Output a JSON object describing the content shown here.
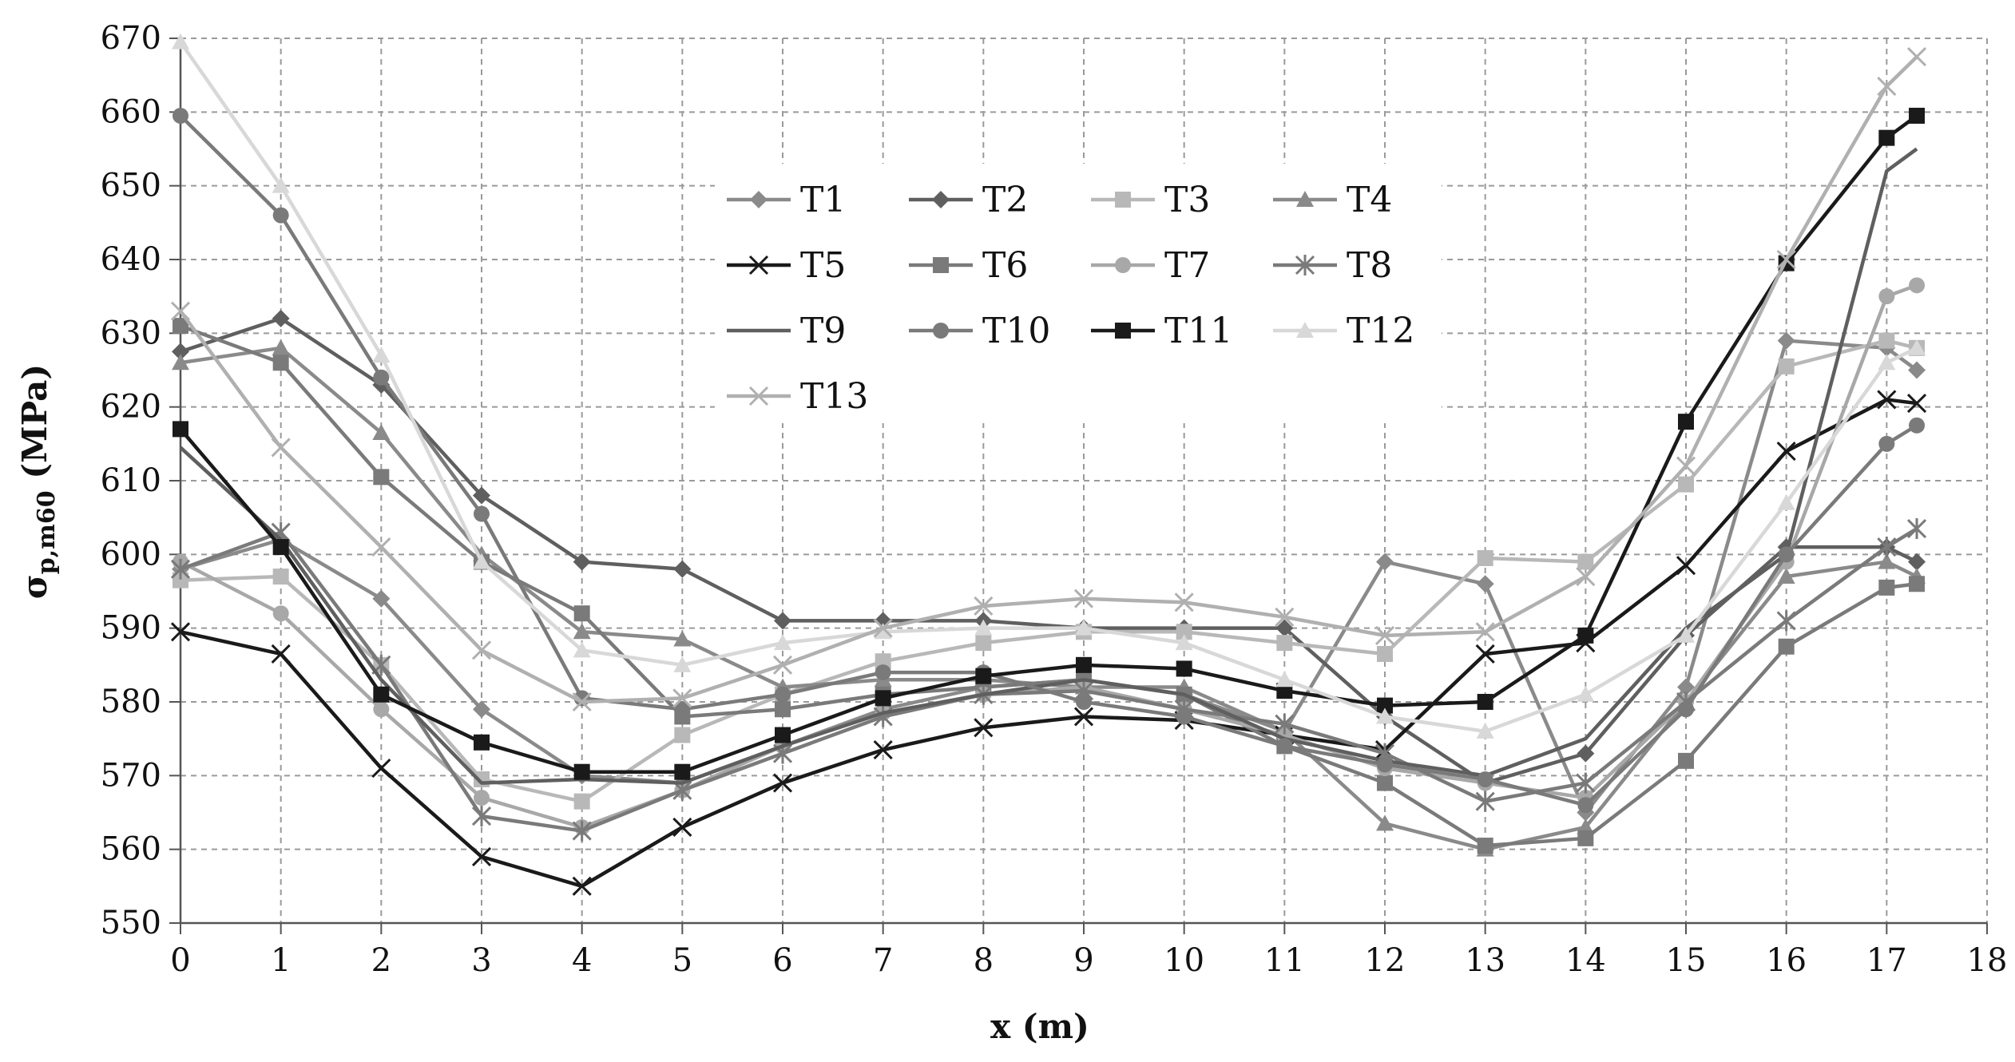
{
  "chart_data": {
    "type": "line",
    "title": "",
    "xlabel": "x (m)",
    "ylabel_main": "σ",
    "ylabel_sub": "p,m60",
    "ylabel_unit": " (MPa)",
    "xlim": [
      0,
      18
    ],
    "ylim": [
      550,
      670
    ],
    "x_ticks": [
      0,
      1,
      2,
      3,
      4,
      5,
      6,
      7,
      8,
      9,
      10,
      11,
      12,
      13,
      14,
      15,
      16,
      17,
      18
    ],
    "y_ticks": [
      550,
      560,
      570,
      580,
      590,
      600,
      610,
      620,
      630,
      640,
      650,
      660,
      670
    ],
    "grid": true,
    "legend_position": "top-center",
    "x": [
      0,
      1,
      2,
      3,
      4,
      5,
      6,
      7,
      8,
      9,
      10,
      11,
      12,
      13,
      14,
      15,
      16,
      17,
      17.3
    ],
    "series": [
      {
        "name": "T1",
        "color": "#8a8a8a",
        "marker": "diamond",
        "values": [
          598,
          602,
          594,
          579,
          570,
          569,
          574,
          579,
          582,
          583,
          581,
          576,
          599,
          596,
          565,
          582,
          629,
          628,
          625
        ]
      },
      {
        "name": "T2",
        "color": "#5f5f5f",
        "marker": "diamond",
        "values": [
          627.5,
          632,
          623,
          608,
          599,
          598,
          591,
          591,
          591,
          590,
          590,
          590,
          578,
          569,
          573,
          589,
          601,
          601,
          599
        ]
      },
      {
        "name": "T3",
        "color": "#b8b8b8",
        "marker": "square",
        "values": [
          596.5,
          597,
          585,
          569.5,
          566.5,
          575.5,
          581,
          585.5,
          588,
          589.5,
          589.5,
          588,
          586.5,
          599.5,
          599,
          609.5,
          625.5,
          629,
          628
        ]
      },
      {
        "name": "T4",
        "color": "#8a8a8a",
        "marker": "triangle",
        "values": [
          626,
          628,
          616.5,
          600,
          589.5,
          588.5,
          582,
          583,
          583,
          582,
          582,
          576,
          563.5,
          560,
          563,
          580,
          597,
          599,
          597
        ]
      },
      {
        "name": "T5",
        "color": "#1a1a1a",
        "marker": "x",
        "values": [
          589.5,
          586.5,
          571,
          559,
          555,
          563,
          569,
          573.5,
          576.5,
          578,
          577.5,
          575.5,
          573.5,
          586.5,
          588,
          598.5,
          614,
          621,
          620.5
        ]
      },
      {
        "name": "T6",
        "color": "#7a7a7a",
        "marker": "square",
        "values": [
          631,
          626,
          610.5,
          599,
          592,
          578,
          579,
          581,
          582,
          583,
          581,
          574,
          569,
          560.5,
          561.5,
          572,
          587.5,
          595.5,
          596
        ]
      },
      {
        "name": "T7",
        "color": "#a8a8a8",
        "marker": "circle",
        "values": [
          599,
          592,
          579,
          567,
          563,
          568,
          574,
          578.5,
          581,
          582,
          579,
          575.5,
          571,
          569,
          567,
          580,
          599,
          635,
          636.5
        ]
      },
      {
        "name": "T8",
        "color": "#7a7a7a",
        "marker": "star",
        "values": [
          598,
          603,
          585,
          564.5,
          562.5,
          568,
          573,
          578,
          581,
          581.5,
          579,
          577,
          573,
          566.5,
          569,
          580,
          591,
          601,
          603.5
        ]
      },
      {
        "name": "T9",
        "color": "#5f5f5f",
        "marker": "none",
        "values": [
          614.5,
          602,
          583,
          569,
          569.5,
          569,
          574,
          578.5,
          581,
          583,
          581,
          575,
          572,
          570,
          575,
          590,
          600,
          652,
          655
        ]
      },
      {
        "name": "T10",
        "color": "#7a7a7a",
        "marker": "circle",
        "values": [
          659.5,
          646,
          624,
          605.5,
          580.5,
          579,
          581,
          584,
          584,
          580,
          578,
          574,
          571.5,
          569.5,
          566,
          579,
          600,
          615,
          617.5
        ]
      },
      {
        "name": "T11",
        "color": "#1a1a1a",
        "marker": "square",
        "values": [
          617,
          601,
          581,
          574.5,
          570.5,
          570.5,
          575.5,
          580.5,
          583.5,
          585,
          584.5,
          581.5,
          579.5,
          580,
          589,
          618,
          639.5,
          656.5,
          659.5
        ]
      },
      {
        "name": "T12",
        "color": "#d8d8d8",
        "marker": "triangle",
        "values": [
          669.5,
          650,
          627,
          599,
          587,
          585,
          588,
          589.5,
          590,
          590,
          588,
          583,
          578,
          576,
          581,
          589,
          607,
          626,
          628
        ]
      },
      {
        "name": "T13",
        "color": "#b0b0b0",
        "marker": "x",
        "values": [
          633,
          614.5,
          601,
          587,
          580,
          580.5,
          585,
          590,
          593,
          594,
          593.5,
          591.5,
          589,
          589.5,
          597,
          612,
          640,
          663.5,
          667.5
        ]
      }
    ]
  }
}
